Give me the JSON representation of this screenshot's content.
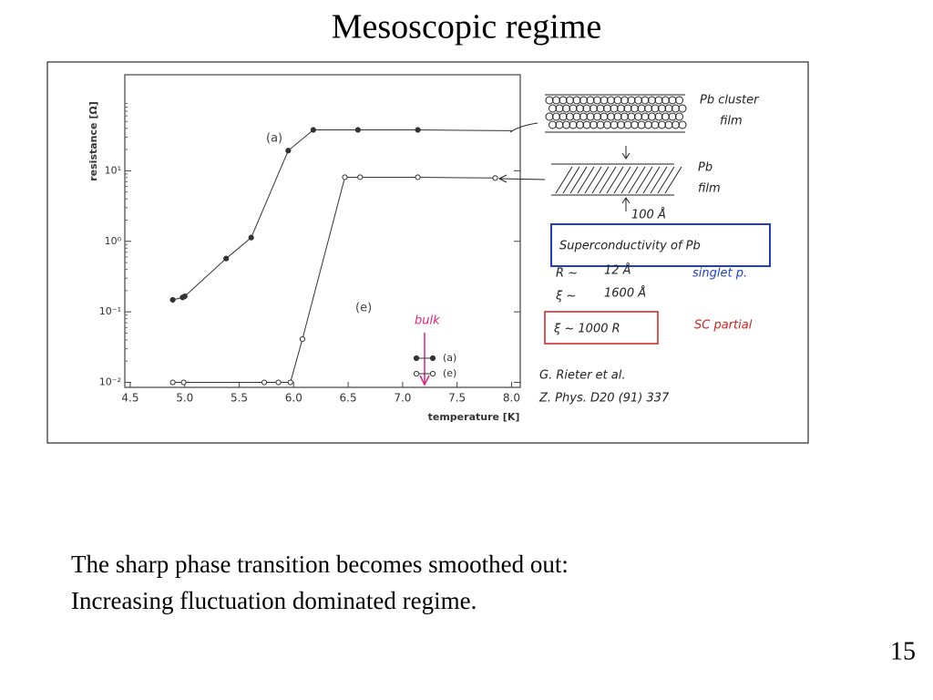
{
  "title": "Mesoscopic regime",
  "chart_data": {
    "type": "line",
    "log_scale": "y",
    "grid": false,
    "ylabel": "resistance [Ω]",
    "xlabel": "temperature [K]",
    "xlim": [
      4.45,
      8.08
    ],
    "xticks": [
      4.5,
      {
        "value": 5,
        "label": "5.0"
      },
      5.5,
      {
        "value": 6,
        "label": "6.0"
      },
      6.5,
      {
        "value": 7,
        "label": "7.0"
      },
      7.5,
      {
        "value": 8,
        "label": "8.0"
      }
    ],
    "ylim": [
      0.0085,
      230
    ],
    "yticks": [
      {
        "value": 0.01,
        "label": "10⁻²"
      },
      {
        "value": 0.1,
        "label": "10⁻¹"
      },
      {
        "value": 1,
        "label": "10⁰"
      },
      {
        "value": 10,
        "label": "10¹"
      }
    ],
    "series": [
      {
        "name": "(a)",
        "color": "#333333",
        "marker": "filled",
        "x": [
          4.89,
          4.98,
          5.0,
          5.38,
          5.61,
          5.95,
          6.18,
          6.59,
          7.14,
          8.0
        ],
        "values": [
          0.148,
          0.16,
          0.166,
          0.57,
          1.13,
          19.3,
          38,
          38,
          38,
          37
        ],
        "markers": [
          true,
          true,
          true,
          true,
          true,
          true,
          true,
          true,
          true,
          false
        ]
      },
      {
        "name": "(e)",
        "color": "#333333",
        "marker": "open",
        "x": [
          4.89,
          4.99,
          5.73,
          5.86,
          5.97,
          6.08,
          6.47,
          6.61,
          7.14,
          7.85
        ],
        "values": [
          0.01,
          0.01,
          0.01,
          0.01,
          0.01,
          0.041,
          8.1,
          8.1,
          8.1,
          7.9
        ],
        "markers": [
          true,
          true,
          true,
          true,
          true,
          true,
          true,
          true,
          true,
          true
        ]
      }
    ],
    "annotations": [
      "(a)",
      "(e)",
      "bulk"
    ],
    "notes": [
      "Pb cluster",
      "film",
      "Pb",
      "film",
      "100 Å",
      "Superconductivity of Pb",
      "R ~",
      "12 Å",
      "singlet p.",
      "ξ ~",
      "1600 Å",
      "ξ ~   1000 R",
      "SC partial",
      "G. Rieter et al.",
      "Z. Phys. D20 (91) 337"
    ]
  },
  "caption": [
    "The sharp phase transition becomes smoothed out:",
    "Increasing fluctuation dominated regime."
  ],
  "page_number": 15
}
